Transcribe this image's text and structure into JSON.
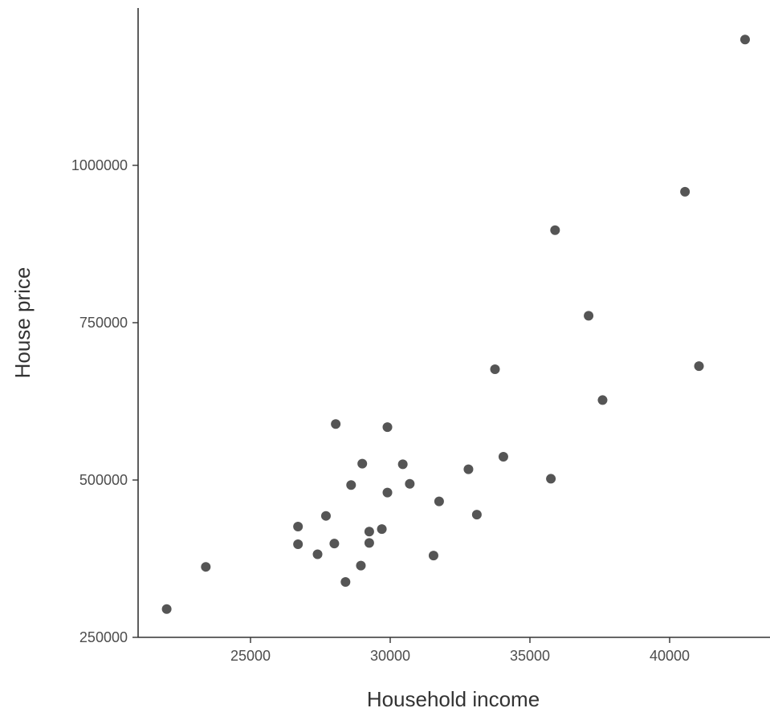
{
  "chart_data": {
    "type": "scatter",
    "title": "",
    "xlabel": "Household income",
    "ylabel": "House price",
    "xlim": [
      21000,
      43600
    ],
    "ylim": [
      250000,
      1500000
    ],
    "xticks": [
      25000,
      30000,
      35000,
      40000
    ],
    "yticks": [
      250000,
      500000,
      750000,
      1000000
    ],
    "x_tick_labels": [
      "25000",
      "30000",
      "35000",
      "40000"
    ],
    "y_tick_labels": [
      "250000",
      "500000",
      "750000",
      "1000000"
    ],
    "grid": false,
    "legend": "none",
    "point_color": "#555555",
    "axis_color": "#333333",
    "points": [
      {
        "x": 22000,
        "y": 295000
      },
      {
        "x": 23400,
        "y": 362000
      },
      {
        "x": 26700,
        "y": 426000
      },
      {
        "x": 26700,
        "y": 398000
      },
      {
        "x": 27400,
        "y": 382000
      },
      {
        "x": 27700,
        "y": 443000
      },
      {
        "x": 28000,
        "y": 399000
      },
      {
        "x": 28050,
        "y": 589000
      },
      {
        "x": 28400,
        "y": 338000
      },
      {
        "x": 28600,
        "y": 492000
      },
      {
        "x": 28950,
        "y": 364000
      },
      {
        "x": 29000,
        "y": 526000
      },
      {
        "x": 29250,
        "y": 400000
      },
      {
        "x": 29250,
        "y": 418000
      },
      {
        "x": 29700,
        "y": 422000
      },
      {
        "x": 29900,
        "y": 584000
      },
      {
        "x": 29900,
        "y": 480000
      },
      {
        "x": 30450,
        "y": 525000
      },
      {
        "x": 30700,
        "y": 494000
      },
      {
        "x": 31550,
        "y": 380000
      },
      {
        "x": 31750,
        "y": 466000
      },
      {
        "x": 32800,
        "y": 517000
      },
      {
        "x": 33100,
        "y": 445000
      },
      {
        "x": 33750,
        "y": 676000
      },
      {
        "x": 34050,
        "y": 537000
      },
      {
        "x": 35750,
        "y": 502000
      },
      {
        "x": 35900,
        "y": 897000
      },
      {
        "x": 37100,
        "y": 761000
      },
      {
        "x": 37600,
        "y": 627000
      },
      {
        "x": 40550,
        "y": 958000
      },
      {
        "x": 41050,
        "y": 681000
      },
      {
        "x": 42700,
        "y": 1200000
      }
    ]
  }
}
